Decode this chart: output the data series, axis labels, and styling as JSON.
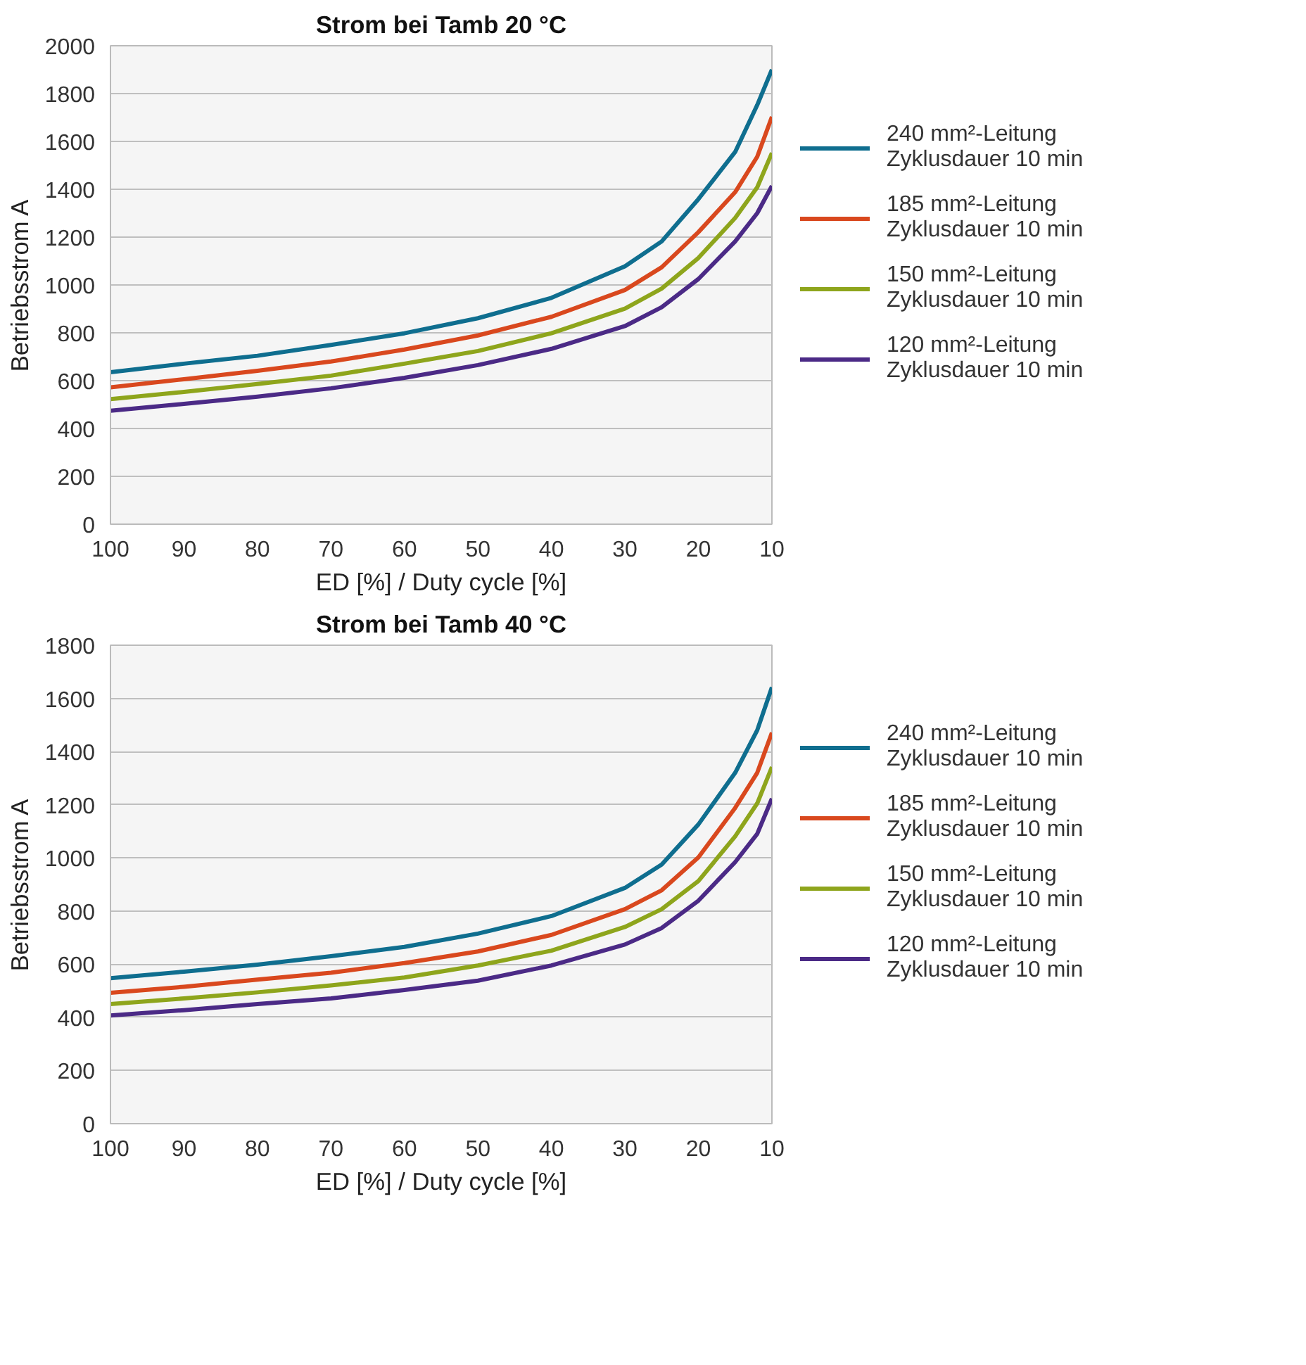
{
  "chart_data": [
    {
      "type": "line",
      "title": "Strom bei Tamb 20 °C",
      "xlabel": "ED [%] / Duty cycle [%]",
      "ylabel": "Betriebsstrom A",
      "x": [
        100,
        90,
        80,
        70,
        60,
        50,
        40,
        30,
        25,
        20,
        15,
        12,
        10
      ],
      "xlim": [
        100,
        10
      ],
      "xticks": [
        100,
        90,
        80,
        70,
        60,
        50,
        40,
        30,
        20,
        10
      ],
      "ylim": [
        0,
        2000
      ],
      "yticks": [
        0,
        200,
        400,
        600,
        800,
        1000,
        1200,
        1400,
        1600,
        1800,
        2000
      ],
      "grid": "y",
      "legend": "right",
      "series": [
        {
          "name": "240 mm²-Leitung\nZyklusdauer 10 min",
          "color": "#0f6e8f",
          "values": [
            635,
            671,
            704,
            749,
            798,
            861,
            946,
            1078,
            1182,
            1359,
            1556,
            1752,
            1900
          ]
        },
        {
          "name": "185 mm²-Leitung\nZyklusdauer 10 min",
          "color": "#d9481e",
          "values": [
            572,
            606,
            641,
            680,
            730,
            789,
            867,
            979,
            1074,
            1221,
            1388,
            1536,
            1703
          ]
        },
        {
          "name": "150 mm²-Leitung\nZyklusdauer 10 min",
          "color": "#8ea51c",
          "values": [
            523,
            553,
            586,
            621,
            671,
            724,
            798,
            901,
            985,
            1113,
            1280,
            1408,
            1552
          ]
        },
        {
          "name": "120 mm²-Leitung\nZyklusdauer 10 min",
          "color": "#4b2a86",
          "values": [
            474,
            503,
            533,
            568,
            612,
            665,
            733,
            828,
            907,
            1025,
            1182,
            1300,
            1414
          ]
        }
      ]
    },
    {
      "type": "line",
      "title": "Strom bei Tamb 40 °C",
      "xlabel": "ED [%] / Duty cycle [%]",
      "ylabel": "Betriebsstrom A",
      "x": [
        100,
        90,
        80,
        70,
        60,
        50,
        40,
        30,
        25,
        20,
        15,
        12,
        10
      ],
      "xlim": [
        100,
        10
      ],
      "xticks": [
        100,
        90,
        80,
        70,
        60,
        50,
        40,
        30,
        20,
        10
      ],
      "ylim": [
        0,
        1800
      ],
      "yticks": [
        0,
        200,
        400,
        600,
        800,
        1000,
        1200,
        1400,
        1600,
        1800
      ],
      "grid": "y",
      "legend": "right",
      "series": [
        {
          "name": "240 mm²-Leitung\nZyklusdauer 10 min",
          "color": "#0f6e8f",
          "values": [
            547,
            572,
            598,
            630,
            665,
            715,
            781,
            887,
            975,
            1126,
            1320,
            1480,
            1642
          ]
        },
        {
          "name": "185 mm²-Leitung\nZyklusdauer 10 min",
          "color": "#d9481e",
          "values": [
            492,
            515,
            542,
            568,
            604,
            648,
            710,
            807,
            878,
            1002,
            1188,
            1320,
            1471
          ]
        },
        {
          "name": "150 mm²-Leitung\nZyklusdauer 10 min",
          "color": "#8ea51c",
          "values": [
            450,
            471,
            494,
            520,
            550,
            595,
            651,
            740,
            807,
            913,
            1081,
            1205,
            1342
          ]
        },
        {
          "name": "120 mm²-Leitung\nZyklusdauer 10 min",
          "color": "#4b2a86",
          "values": [
            407,
            427,
            450,
            471,
            503,
            538,
            595,
            674,
            736,
            839,
            984,
            1090,
            1223
          ]
        }
      ]
    }
  ]
}
